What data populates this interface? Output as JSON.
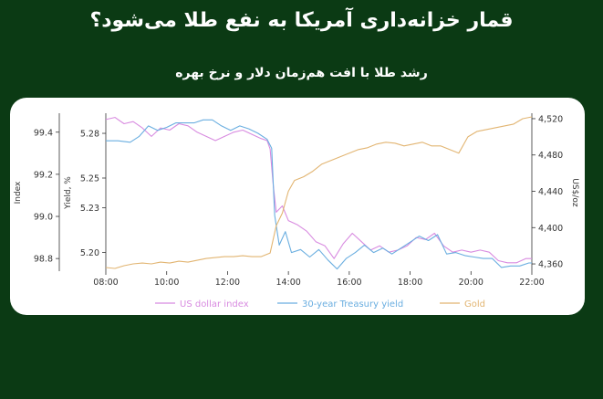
{
  "header": {
    "title": "قمار خزانه‌داری آمریکا به نفع طلا می‌شود؟",
    "subtitle": "رشد طلا با افت هم‌زمان دلار و نرخ بهره"
  },
  "chart_data": {
    "type": "line",
    "x_labels": [
      "08:00",
      "10:00",
      "12:00",
      "14:00",
      "16:00",
      "18:00",
      "20:00",
      "22:00"
    ],
    "x_range": [
      8,
      22
    ],
    "axes": {
      "index": {
        "label": "Index",
        "ticks": [
          "99.4",
          "99.2",
          "99.0",
          "98.8"
        ],
        "range": [
          98.74,
          99.49
        ]
      },
      "yield": {
        "label": "Yield, %",
        "ticks": [
          "5.28",
          "5.25",
          "5.23",
          "5.20"
        ],
        "range": [
          5.1875,
          5.2935
        ]
      },
      "gold": {
        "label": "US$/oz",
        "ticks": [
          "4,520",
          "4,480",
          "4,440",
          "4,400",
          "4,360"
        ],
        "range": [
          4352,
          4526
        ]
      }
    },
    "colors": {
      "dollar": "#d88be0",
      "yield": "#6aaee0",
      "gold": "#e2b572"
    },
    "series": [
      {
        "name": "US dollar index",
        "axis": "index",
        "points": [
          [
            8,
            99.46
          ],
          [
            8.3,
            99.47
          ],
          [
            8.6,
            99.44
          ],
          [
            8.9,
            99.45
          ],
          [
            9.2,
            99.42
          ],
          [
            9.5,
            99.38
          ],
          [
            9.8,
            99.42
          ],
          [
            10.1,
            99.41
          ],
          [
            10.4,
            99.44
          ],
          [
            10.7,
            99.43
          ],
          [
            11,
            99.4
          ],
          [
            11.3,
            99.38
          ],
          [
            11.6,
            99.36
          ],
          [
            11.9,
            99.38
          ],
          [
            12.2,
            99.4
          ],
          [
            12.5,
            99.41
          ],
          [
            12.8,
            99.39
          ],
          [
            13.1,
            99.37
          ],
          [
            13.3,
            99.36
          ],
          [
            13.4,
            99.32
          ],
          [
            13.5,
            99.15
          ],
          [
            13.6,
            99.02
          ],
          [
            13.8,
            99.05
          ],
          [
            14,
            98.98
          ],
          [
            14.3,
            98.96
          ],
          [
            14.6,
            98.93
          ],
          [
            14.9,
            98.88
          ],
          [
            15.2,
            98.86
          ],
          [
            15.5,
            98.8
          ],
          [
            15.8,
            98.87
          ],
          [
            16.1,
            98.92
          ],
          [
            16.4,
            98.88
          ],
          [
            16.7,
            98.84
          ],
          [
            17,
            98.86
          ],
          [
            17.3,
            98.83
          ],
          [
            17.6,
            98.84
          ],
          [
            17.9,
            98.86
          ],
          [
            18.2,
            98.9
          ],
          [
            18.5,
            98.89
          ],
          [
            18.8,
            98.92
          ],
          [
            19.1,
            98.86
          ],
          [
            19.4,
            98.83
          ],
          [
            19.7,
            98.84
          ],
          [
            20,
            98.83
          ],
          [
            20.3,
            98.84
          ],
          [
            20.6,
            98.83
          ],
          [
            20.9,
            98.79
          ],
          [
            21.2,
            98.78
          ],
          [
            21.5,
            98.78
          ],
          [
            21.8,
            98.8
          ],
          [
            22,
            98.8
          ]
        ]
      },
      {
        "name": "30-year Treasury yield",
        "axis": "yield",
        "points": [
          [
            8,
            5.275
          ],
          [
            8.4,
            5.275
          ],
          [
            8.8,
            5.274
          ],
          [
            9.1,
            5.278
          ],
          [
            9.4,
            5.285
          ],
          [
            9.7,
            5.282
          ],
          [
            10,
            5.284
          ],
          [
            10.3,
            5.287
          ],
          [
            10.6,
            5.287
          ],
          [
            10.9,
            5.287
          ],
          [
            11.2,
            5.289
          ],
          [
            11.5,
            5.289
          ],
          [
            11.8,
            5.285
          ],
          [
            12.1,
            5.282
          ],
          [
            12.4,
            5.285
          ],
          [
            12.7,
            5.283
          ],
          [
            13,
            5.28
          ],
          [
            13.3,
            5.276
          ],
          [
            13.45,
            5.27
          ],
          [
            13.55,
            5.225
          ],
          [
            13.7,
            5.205
          ],
          [
            13.9,
            5.214
          ],
          [
            14.1,
            5.2
          ],
          [
            14.4,
            5.202
          ],
          [
            14.7,
            5.197
          ],
          [
            15,
            5.202
          ],
          [
            15.3,
            5.195
          ],
          [
            15.6,
            5.189
          ],
          [
            15.9,
            5.196
          ],
          [
            16.2,
            5.2
          ],
          [
            16.5,
            5.205
          ],
          [
            16.8,
            5.2
          ],
          [
            17.1,
            5.203
          ],
          [
            17.4,
            5.199
          ],
          [
            17.7,
            5.203
          ],
          [
            18,
            5.207
          ],
          [
            18.3,
            5.211
          ],
          [
            18.6,
            5.208
          ],
          [
            18.9,
            5.212
          ],
          [
            19.2,
            5.199
          ],
          [
            19.5,
            5.2
          ],
          [
            19.8,
            5.198
          ],
          [
            20.1,
            5.197
          ],
          [
            20.4,
            5.196
          ],
          [
            20.7,
            5.196
          ],
          [
            21,
            5.19
          ],
          [
            21.3,
            5.191
          ],
          [
            21.6,
            5.191
          ],
          [
            21.9,
            5.193
          ],
          [
            22,
            5.193
          ]
        ]
      },
      {
        "name": "Gold",
        "axis": "gold",
        "points": [
          [
            8,
            4356
          ],
          [
            8.3,
            4355
          ],
          [
            8.6,
            4358
          ],
          [
            8.9,
            4360
          ],
          [
            9.2,
            4361
          ],
          [
            9.5,
            4360
          ],
          [
            9.8,
            4362
          ],
          [
            10.1,
            4361
          ],
          [
            10.4,
            4363
          ],
          [
            10.7,
            4362
          ],
          [
            11,
            4364
          ],
          [
            11.3,
            4366
          ],
          [
            11.6,
            4367
          ],
          [
            11.9,
            4368
          ],
          [
            12.2,
            4368
          ],
          [
            12.5,
            4369
          ],
          [
            12.8,
            4368
          ],
          [
            13.1,
            4368
          ],
          [
            13.4,
            4372
          ],
          [
            13.6,
            4402
          ],
          [
            13.8,
            4416
          ],
          [
            14,
            4440
          ],
          [
            14.2,
            4452
          ],
          [
            14.5,
            4456
          ],
          [
            14.8,
            4462
          ],
          [
            15.1,
            4470
          ],
          [
            15.4,
            4474
          ],
          [
            15.7,
            4478
          ],
          [
            16,
            4482
          ],
          [
            16.3,
            4486
          ],
          [
            16.6,
            4488
          ],
          [
            16.9,
            4492
          ],
          [
            17.2,
            4494
          ],
          [
            17.5,
            4493
          ],
          [
            17.8,
            4490
          ],
          [
            18.1,
            4492
          ],
          [
            18.4,
            4494
          ],
          [
            18.7,
            4490
          ],
          [
            19,
            4490
          ],
          [
            19.3,
            4486
          ],
          [
            19.6,
            4482
          ],
          [
            19.9,
            4500
          ],
          [
            20.2,
            4506
          ],
          [
            20.5,
            4508
          ],
          [
            20.8,
            4510
          ],
          [
            21.1,
            4512
          ],
          [
            21.4,
            4514
          ],
          [
            21.7,
            4520
          ],
          [
            22,
            4522
          ]
        ]
      }
    ],
    "legend": {
      "position": "bottom"
    }
  }
}
